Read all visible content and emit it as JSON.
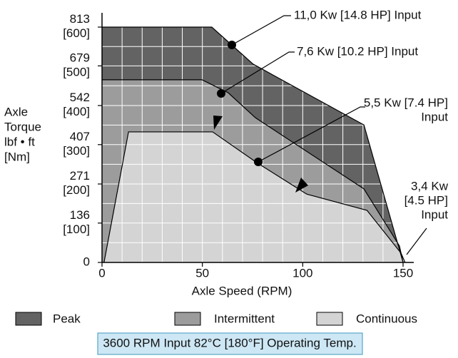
{
  "chart_data": {
    "type": "area",
    "xlabel": "Axle Speed (RPM)",
    "ylabel": [
      "Axle",
      "Torque",
      "lbf • ft",
      "[Nm]"
    ],
    "xlim": [
      0,
      150
    ],
    "ylim": [
      0,
      813
    ],
    "xticks": [
      0,
      50,
      100,
      150
    ],
    "yticks": [
      0,
      {
        "value": 136,
        "label": "136 [100]"
      },
      {
        "value": 271,
        "label": "271 [200]"
      },
      {
        "value": 407,
        "label": "407 [300]"
      },
      {
        "value": 542,
        "label": "542 [400]"
      },
      {
        "value": 679,
        "label": "679 [500]"
      },
      {
        "value": 813,
        "label": "813 [600]"
      }
    ],
    "grid": true,
    "series": [
      {
        "name": "Peak",
        "color": "#636363",
        "x": [
          0,
          54.7,
          75.3,
          130.5,
          150
        ],
        "values": [
          813,
          813,
          685,
          475,
          0
        ]
      },
      {
        "name": "Intermittent",
        "color": "#9c9c9c",
        "x": [
          0,
          49.8,
          62.9,
          76.4,
          130.5,
          148.2,
          150
        ],
        "values": [
          631,
          631,
          586,
          500,
          254,
          57,
          0
        ]
      },
      {
        "name": "Continuous",
        "color": "#d4d4d4",
        "x": [
          1,
          13.2,
          55.1,
          77.1,
          102,
          132,
          149,
          151
        ],
        "values": [
          0,
          451,
          451,
          345,
          236,
          180,
          32,
          0
        ]
      }
    ],
    "annotations": [
      {
        "lines": [
          "11,0 Kw [14.8 HP] Input"
        ]
      },
      {
        "lines": [
          "7,6 Kw [10.2 HP] Input"
        ]
      },
      {
        "lines": [
          "5,5 Kw [7.4 HP]",
          "Input"
        ]
      },
      {
        "lines": [
          "3,4 Kw",
          "[4.5 HP]",
          "Input"
        ]
      }
    ],
    "footer": "3600 RPM Input 82°C [180°F] Operating Temp."
  }
}
